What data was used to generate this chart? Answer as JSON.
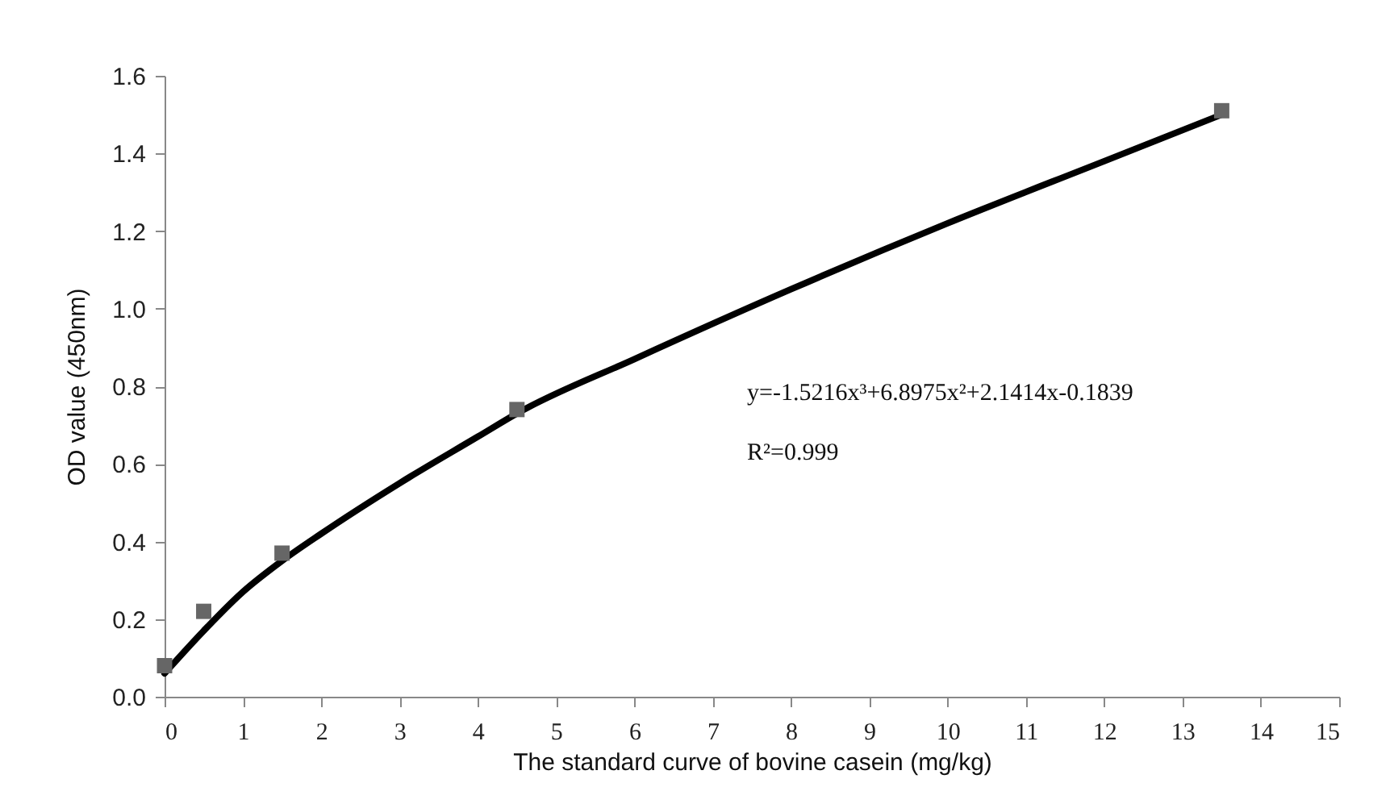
{
  "chart_data": {
    "type": "scatter",
    "xlabel": "The standard curve of bovine casein (mg/kg)",
    "ylabel": "OD value (450nm)",
    "xlim": [
      0,
      15
    ],
    "xticks": [
      0,
      1,
      2,
      3,
      4,
      5,
      6,
      7,
      8,
      9,
      10,
      11,
      12,
      13,
      14,
      15
    ],
    "ylim": [
      0,
      1.6
    ],
    "yticks": [
      {
        "value": 0,
        "label": "0.0"
      },
      0.2,
      0.4,
      0.6,
      0.8,
      {
        "value": 1,
        "label": "1.0"
      },
      1.2,
      1.4,
      1.6
    ],
    "grid": false,
    "series": [
      {
        "type": "line",
        "color": "#000000",
        "marker": "none",
        "line_style": "solid",
        "x": [
          0,
          0.5,
          1,
          1.5,
          2,
          3,
          4,
          4.5,
          6,
          8,
          10,
          12,
          13.5
        ],
        "values": [
          0.06,
          0.17,
          0.27,
          0.35,
          0.42,
          0.55,
          0.67,
          0.73,
          0.87,
          1.05,
          1.22,
          1.38,
          1.5
        ]
      },
      {
        "color": "#666666",
        "marker": "square",
        "x": [
          0,
          0.5,
          1.5,
          4.5,
          13.5
        ],
        "values": [
          0.08,
          0.22,
          0.37,
          0.74,
          1.51
        ]
      }
    ],
    "annotations": [
      "y=-1.5216x³+6.8975x²+2.1414x-0.1839",
      "R²=0.999"
    ]
  }
}
